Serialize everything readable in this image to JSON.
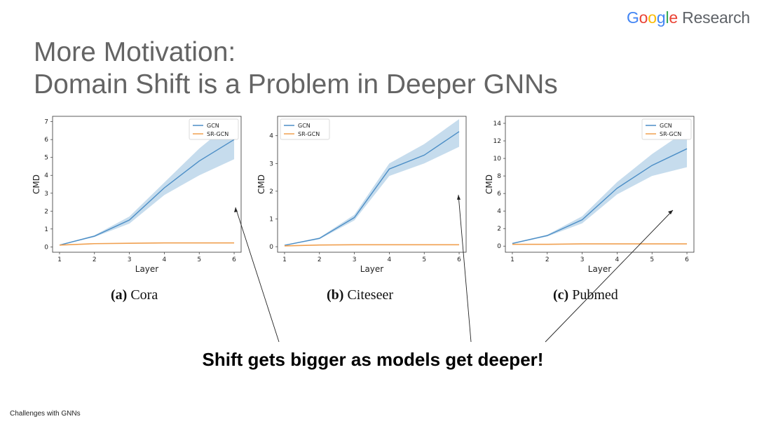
{
  "brand": {
    "g1": "G",
    "o1": "o",
    "o2": "o",
    "g2": "g",
    "l": "l",
    "e": "e",
    "research": "Research"
  },
  "slide": {
    "title_line1": "More Motivation:",
    "title_line2": "Domain Shift is a Problem in Deeper GNNs",
    "tagline": "Shift gets bigger as models get deeper!",
    "footer": "Challenges with GNNs"
  },
  "colors": {
    "gcn": "#4c8ec6",
    "sr_gcn": "#f0a050",
    "band": "#aecde6"
  },
  "chart_data": [
    {
      "type": "line",
      "caption_prefix": "(a)",
      "caption_name": "Cora",
      "xlabel": "Layer",
      "ylabel": "CMD",
      "x": [
        1,
        2,
        3,
        4,
        5,
        6
      ],
      "xlim": [
        0.8,
        6.2
      ],
      "ylim": [
        -0.3,
        7.3
      ],
      "yticks": [
        0,
        1,
        2,
        3,
        4,
        5,
        6,
        7
      ],
      "legend_position": "top-right",
      "series": [
        {
          "name": "GCN",
          "values": [
            0.1,
            0.6,
            1.5,
            3.3,
            4.8,
            6.0
          ],
          "band_low": [
            0.08,
            0.55,
            1.3,
            2.9,
            4.0,
            4.9
          ],
          "band_high": [
            0.12,
            0.65,
            1.7,
            3.6,
            5.5,
            7.1
          ]
        },
        {
          "name": "SR-GCN",
          "values": [
            0.1,
            0.18,
            0.2,
            0.22,
            0.22,
            0.22
          ]
        }
      ]
    },
    {
      "type": "line",
      "caption_prefix": "(b)",
      "caption_name": "Citeseer",
      "xlabel": "Layer",
      "ylabel": "CMD",
      "x": [
        1,
        2,
        3,
        4,
        5,
        6
      ],
      "xlim": [
        0.8,
        6.2
      ],
      "ylim": [
        -0.2,
        4.7
      ],
      "yticks": [
        0,
        1,
        2,
        3,
        4
      ],
      "legend_position": "top-left",
      "series": [
        {
          "name": "GCN",
          "values": [
            0.05,
            0.3,
            1.05,
            2.8,
            3.3,
            4.15
          ],
          "band_low": [
            0.04,
            0.27,
            0.95,
            2.55,
            3.0,
            3.6
          ],
          "band_high": [
            0.06,
            0.33,
            1.15,
            3.0,
            3.7,
            4.6
          ]
        },
        {
          "name": "SR-GCN",
          "values": [
            0.03,
            0.06,
            0.07,
            0.07,
            0.07,
            0.07
          ]
        }
      ]
    },
    {
      "type": "line",
      "caption_prefix": "(c)",
      "caption_name": "Pubmed",
      "xlabel": "Layer",
      "ylabel": "CMD",
      "x": [
        1,
        2,
        3,
        4,
        5,
        6
      ],
      "xlim": [
        0.8,
        6.2
      ],
      "ylim": [
        -0.7,
        14.8
      ],
      "yticks": [
        0,
        2,
        4,
        6,
        8,
        10,
        12,
        14
      ],
      "legend_position": "top-right",
      "series": [
        {
          "name": "GCN",
          "values": [
            0.3,
            1.2,
            3.0,
            6.6,
            9.2,
            11.1
          ],
          "band_low": [
            0.25,
            1.1,
            2.6,
            5.9,
            8.0,
            9.0
          ],
          "band_high": [
            0.35,
            1.3,
            3.4,
            7.3,
            10.5,
            13.2
          ]
        },
        {
          "name": "SR-GCN",
          "values": [
            0.2,
            0.2,
            0.25,
            0.25,
            0.25,
            0.25
          ]
        }
      ]
    }
  ]
}
